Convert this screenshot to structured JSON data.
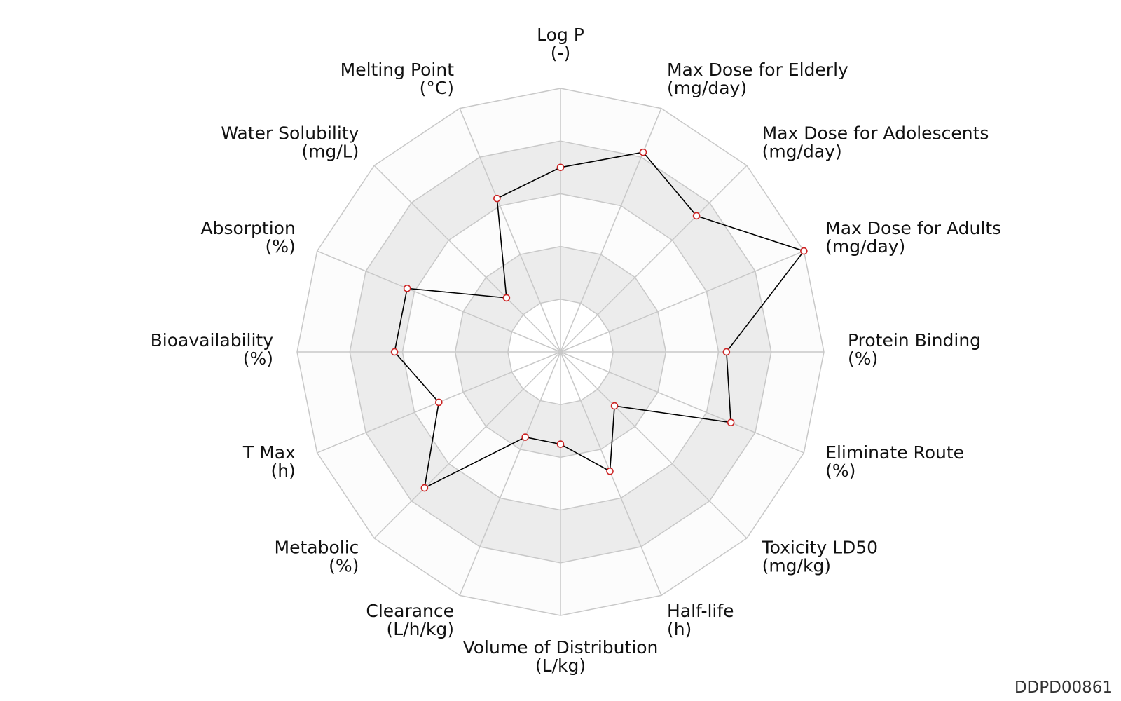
{
  "chart_data": {
    "type": "radar",
    "max": 1.0,
    "rings": 5,
    "ring_fill_colors": [
      "#ffffff",
      "#ececec",
      "#fcfcfc",
      "#ececec",
      "#fcfcfc"
    ],
    "grid_color": "#c8c8c8",
    "line_color": "#000000",
    "marker_color": "#cc2222",
    "axes": [
      {
        "name": "Log P",
        "unit": "(-)",
        "value": 0.7
      },
      {
        "name": "Max Dose for Elderly",
        "unit": "(mg/day)",
        "value": 0.82
      },
      {
        "name": "Max Dose for Adolescents",
        "unit": "(mg/day)",
        "value": 0.73
      },
      {
        "name": "Max Dose for Adults",
        "unit": "(mg/day)",
        "value": 1.0
      },
      {
        "name": "Protein Binding",
        "unit": "(%)",
        "value": 0.63
      },
      {
        "name": "Eliminate Route",
        "unit": "(%)",
        "value": 0.7
      },
      {
        "name": "Toxicity LD50",
        "unit": "(mg/kg)",
        "value": 0.29
      },
      {
        "name": "Half-life",
        "unit": "(h)",
        "value": 0.49
      },
      {
        "name": "Volume of Distribution",
        "unit": "(L/kg)",
        "value": 0.35
      },
      {
        "name": "Clearance",
        "unit": "(L/h/kg)",
        "value": 0.35
      },
      {
        "name": "Metabolic",
        "unit": "(%)",
        "value": 0.73
      },
      {
        "name": "T Max",
        "unit": "(h)",
        "value": 0.5
      },
      {
        "name": "Bioavailability",
        "unit": "(%)",
        "value": 0.63
      },
      {
        "name": "Absorption",
        "unit": "(%)",
        "value": 0.63
      },
      {
        "name": "Water Solubility",
        "unit": "(mg/L)",
        "value": 0.29
      },
      {
        "name": "Melting Point",
        "unit": "(°C)",
        "value": 0.63
      }
    ]
  },
  "footer": {
    "id": "DDPD00861"
  }
}
